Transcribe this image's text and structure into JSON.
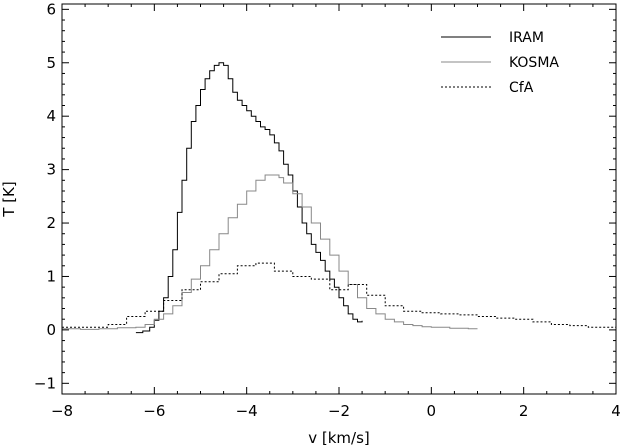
{
  "chart_data": {
    "type": "line",
    "title": "",
    "xlabel": "v [km/s]",
    "ylabel": "T [K]",
    "xlim": [
      -8,
      4
    ],
    "ylim": [
      -1.2,
      6.1
    ],
    "xticks": [
      -8,
      -6,
      -4,
      -2,
      0,
      2,
      4
    ],
    "yticks": [
      -1,
      0,
      1,
      2,
      3,
      4,
      5,
      6
    ],
    "grid": false,
    "legend_position": "top-right",
    "step": true,
    "series": [
      {
        "name": "IRAM",
        "color": "#000000",
        "dash": "solid",
        "x": [
          -6.4,
          -6.25,
          -6.1,
          -6.0,
          -5.9,
          -5.8,
          -5.7,
          -5.6,
          -5.5,
          -5.4,
          -5.3,
          -5.2,
          -5.1,
          -5.0,
          -4.9,
          -4.8,
          -4.7,
          -4.6,
          -4.5,
          -4.4,
          -4.3,
          -4.2,
          -4.1,
          -4.0,
          -3.9,
          -3.8,
          -3.7,
          -3.6,
          -3.5,
          -3.4,
          -3.3,
          -3.2,
          -3.1,
          -3.0,
          -2.9,
          -2.8,
          -2.7,
          -2.6,
          -2.5,
          -2.4,
          -2.3,
          -2.2,
          -2.1,
          -2.0,
          -1.9,
          -1.8,
          -1.7,
          -1.6,
          -1.5
        ],
        "y": [
          -0.05,
          -0.02,
          0.05,
          0.18,
          0.35,
          0.6,
          1.0,
          1.5,
          2.2,
          2.8,
          3.4,
          3.9,
          4.2,
          4.5,
          4.7,
          4.85,
          4.95,
          5.0,
          4.95,
          4.7,
          4.45,
          4.3,
          4.2,
          4.1,
          4.0,
          3.9,
          3.8,
          3.75,
          3.65,
          3.5,
          3.35,
          3.1,
          2.9,
          2.6,
          2.3,
          2.0,
          1.8,
          1.6,
          1.45,
          1.3,
          1.1,
          0.95,
          0.8,
          0.6,
          0.45,
          0.3,
          0.2,
          0.15,
          0.17
        ]
      },
      {
        "name": "KOSMA",
        "color": "#888888",
        "dash": "solid",
        "x": [
          -8.0,
          -7.6,
          -7.2,
          -6.8,
          -6.4,
          -6.2,
          -6.0,
          -5.8,
          -5.6,
          -5.4,
          -5.2,
          -5.0,
          -4.8,
          -4.6,
          -4.4,
          -4.2,
          -4.0,
          -3.8,
          -3.6,
          -3.4,
          -3.3,
          -3.2,
          -3.0,
          -2.8,
          -2.6,
          -2.4,
          -2.2,
          -2.0,
          -1.8,
          -1.6,
          -1.4,
          -1.2,
          -1.0,
          -0.8,
          -0.6,
          -0.4,
          -0.2,
          0.0,
          0.4,
          0.8,
          1.0
        ],
        "y": [
          0.02,
          0.01,
          0.02,
          0.04,
          0.05,
          0.1,
          0.2,
          0.3,
          0.45,
          0.7,
          0.95,
          1.2,
          1.5,
          1.8,
          2.1,
          2.35,
          2.6,
          2.8,
          2.9,
          2.9,
          2.85,
          2.75,
          2.55,
          2.3,
          2.0,
          1.7,
          1.4,
          1.1,
          0.85,
          0.6,
          0.4,
          0.3,
          0.2,
          0.15,
          0.1,
          0.08,
          0.06,
          0.05,
          0.03,
          0.02,
          0.02
        ]
      },
      {
        "name": "CfA",
        "color": "#000000",
        "dash": "dotted",
        "x": [
          -8.0,
          -7.0,
          -6.6,
          -6.2,
          -5.8,
          -5.4,
          -5.0,
          -4.6,
          -4.2,
          -3.8,
          -3.4,
          -3.0,
          -2.6,
          -2.2,
          -1.8,
          -1.4,
          -1.0,
          -0.6,
          -0.2,
          0.2,
          0.6,
          1.0,
          1.4,
          1.8,
          2.2,
          2.6,
          3.0,
          3.4,
          4.0
        ],
        "y": [
          0.05,
          0.1,
          0.25,
          0.35,
          0.55,
          0.75,
          0.9,
          1.05,
          1.2,
          1.25,
          1.1,
          1.0,
          0.95,
          0.75,
          0.85,
          0.65,
          0.45,
          0.35,
          0.32,
          0.3,
          0.28,
          0.25,
          0.22,
          0.2,
          0.15,
          0.1,
          0.08,
          0.05,
          0.02
        ]
      }
    ]
  }
}
